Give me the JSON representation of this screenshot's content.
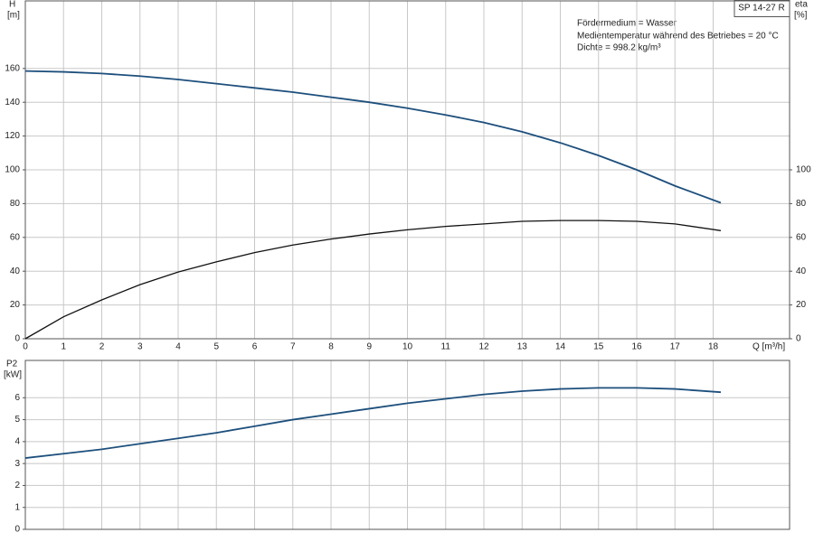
{
  "chart_data": [
    {
      "type": "line",
      "annotations": [
        "SP 14-27 R",
        "Fördermedium = Wasser",
        "Medientemperatur während des Betriebes = 20 °C",
        "Dichte = 998.2 kg/m³"
      ],
      "ylabel": [
        "H",
        "[m]"
      ],
      "y2label": [
        "eta",
        "[%]"
      ],
      "xlabel": "Q [m³/h]",
      "x": [
        0,
        1,
        2,
        3,
        4,
        5,
        6,
        7,
        8,
        9,
        10,
        11,
        12,
        13,
        14,
        15,
        16,
        17,
        18.2
      ],
      "series": [
        {
          "color": "#1d4f7c",
          "values": [
            158.5,
            158,
            157,
            155.5,
            153.5,
            151,
            148.5,
            146,
            143,
            140,
            136.5,
            132.5,
            128,
            122.5,
            116,
            108.5,
            100,
            90.5,
            80.5
          ]
        },
        {
          "color": "#111111",
          "axis": "y2",
          "values": [
            0,
            13,
            23,
            32,
            39.5,
            45.5,
            51,
            55.5,
            59,
            62,
            64.5,
            66.5,
            68,
            69.5,
            70,
            70,
            69.5,
            68,
            64
          ]
        }
      ],
      "xlim": [
        0,
        20
      ],
      "xticks": [
        0,
        1,
        2,
        3,
        4,
        5,
        6,
        7,
        8,
        9,
        10,
        11,
        12,
        13,
        14,
        15,
        16,
        17,
        18
      ],
      "ylim": [
        0,
        200
      ],
      "yticks": [
        0,
        20,
        40,
        60,
        80,
        100,
        120,
        140,
        160
      ],
      "y2lim": [
        0,
        200
      ],
      "y2ticks": [
        0,
        20,
        40,
        60,
        80,
        100
      ],
      "grid": true
    },
    {
      "type": "line",
      "ylabel": [
        "P2",
        "[kW]"
      ],
      "x": [
        0,
        1,
        2,
        3,
        4,
        5,
        6,
        7,
        8,
        9,
        10,
        11,
        12,
        13,
        14,
        15,
        16,
        17,
        18.2
      ],
      "series": [
        {
          "color": "#1d4f7c",
          "values": [
            3.25,
            3.45,
            3.65,
            3.9,
            4.15,
            4.4,
            4.7,
            5.0,
            5.25,
            5.5,
            5.75,
            5.95,
            6.15,
            6.3,
            6.4,
            6.45,
            6.45,
            6.4,
            6.25
          ]
        }
      ],
      "xlim": [
        0,
        20
      ],
      "ylim": [
        0,
        7.7
      ],
      "yticks": [
        0,
        1,
        2,
        3,
        4,
        5,
        6
      ],
      "grid": true
    }
  ]
}
